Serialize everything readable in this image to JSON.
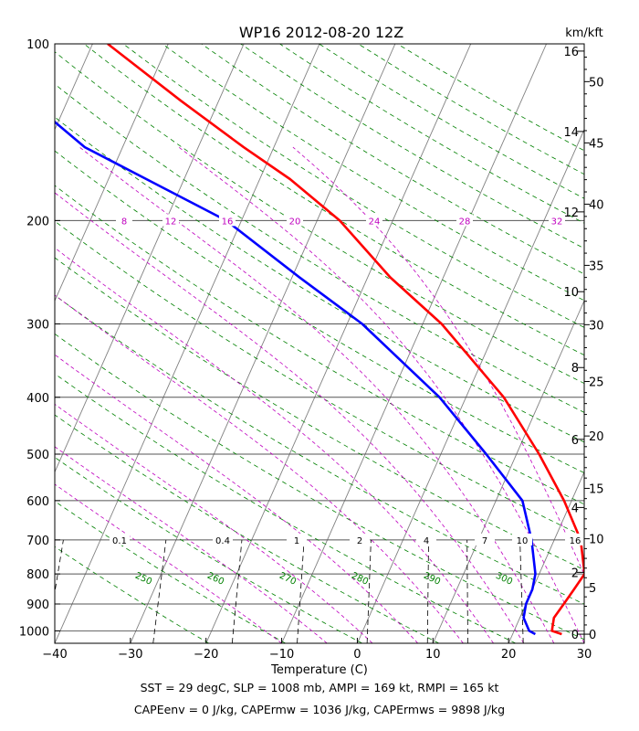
{
  "chart_data": {
    "type": "skew-t log-p sounding",
    "title": "WP16 2012-08-20 12Z",
    "xlabel": "Temperature (C)",
    "x_ticks": [
      -40,
      -30,
      -20,
      -10,
      0,
      10,
      20,
      30
    ],
    "xlim": [
      -40,
      30
    ],
    "p_ticks": [
      100,
      200,
      300,
      400,
      500,
      600,
      700,
      800,
      900,
      1000
    ],
    "plim": [
      1050,
      100
    ],
    "height_km_label": "km/kft",
    "height_km_ticks": [
      0,
      2,
      4,
      6,
      8,
      10,
      12,
      14,
      16
    ],
    "height_kft_ticks": [
      0,
      5,
      10,
      15,
      20,
      25,
      30,
      35,
      40,
      45,
      50
    ],
    "mixing_ratio_labels": [
      {
        "value": 0.1,
        "label": "0.1"
      },
      {
        "value": 0.4,
        "label": "0.4"
      },
      {
        "value": 1,
        "label": "1"
      },
      {
        "value": 2,
        "label": "2"
      },
      {
        "value": 4,
        "label": "4"
      },
      {
        "value": 7,
        "label": "7"
      },
      {
        "value": 10,
        "label": "10"
      },
      {
        "value": 16,
        "label": "16"
      }
    ],
    "dry_adiabat_labels": [
      "250",
      "260",
      "270",
      "280",
      "290",
      "300"
    ],
    "moist_adiabat_labels": [
      "8",
      "12",
      "16",
      "20",
      "24",
      "28",
      "32"
    ],
    "series": [
      {
        "name": "temperature",
        "color": "#ff0000",
        "points": [
          [
            1013,
            26.5
          ],
          [
            1000,
            25.0
          ],
          [
            950,
            24.5
          ],
          [
            900,
            25.0
          ],
          [
            850,
            25.5
          ],
          [
            800,
            26.0
          ],
          [
            700,
            23.5
          ],
          [
            600,
            19.0
          ],
          [
            500,
            13.0
          ],
          [
            400,
            5.0
          ],
          [
            300,
            -7.5
          ],
          [
            250,
            -17.0
          ],
          [
            200,
            -27.0
          ],
          [
            170,
            -36.0
          ],
          [
            150,
            -44.0
          ],
          [
            125,
            -55.0
          ],
          [
            100,
            -68.0
          ]
        ]
      },
      {
        "name": "dewpoint",
        "color": "#0000ff",
        "points": [
          [
            1013,
            23.0
          ],
          [
            1000,
            22.0
          ],
          [
            950,
            20.5
          ],
          [
            900,
            20.0
          ],
          [
            850,
            20.0
          ],
          [
            800,
            19.5
          ],
          [
            700,
            17.0
          ],
          [
            600,
            13.5
          ],
          [
            500,
            6.0
          ],
          [
            400,
            -3.5
          ],
          [
            300,
            -18.0
          ],
          [
            250,
            -29.0
          ],
          [
            200,
            -42.0
          ],
          [
            170,
            -55.0
          ],
          [
            150,
            -65.0
          ],
          [
            125,
            -75.0
          ],
          [
            100,
            -81.0
          ]
        ]
      }
    ],
    "colors": {
      "dry_adiabat": "#008000",
      "moist_adiabat": "#bf00bf",
      "mixing_ratio": "#000000",
      "isotherm": "#808080"
    }
  },
  "footer": {
    "line1": "SST = 29 degC, SLP = 1008 mb, AMPI = 169 kt, RMPI = 165 kt",
    "line2": "CAPEenv = 0 J/kg, CAPErmw = 1036 J/kg, CAPErmws = 9898 J/kg"
  }
}
